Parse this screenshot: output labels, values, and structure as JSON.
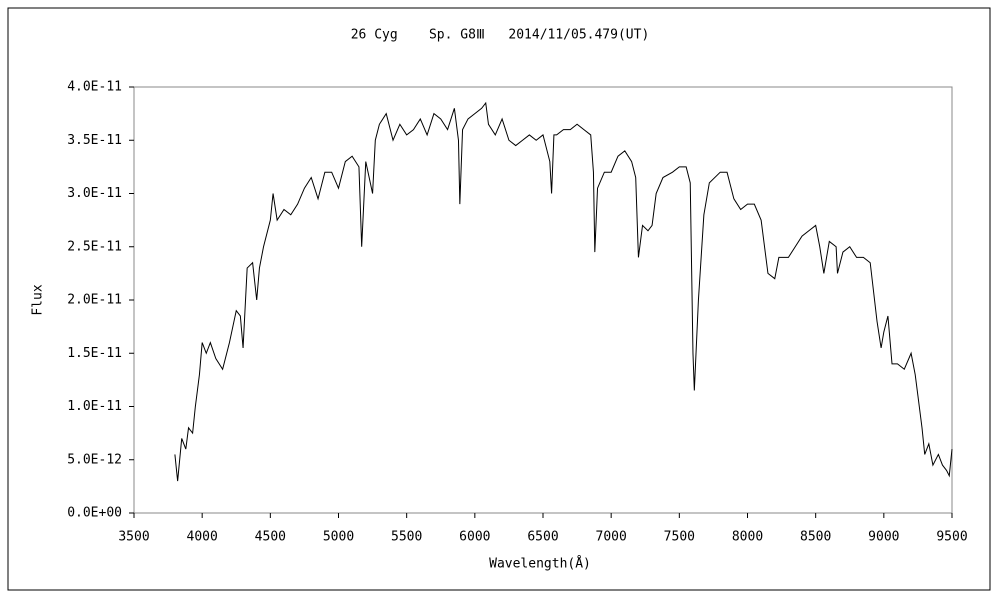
{
  "chart_data": {
    "type": "line",
    "title": "26 Cyg    Sp. G8Ⅲ   2014/11/05.479(UT)",
    "x_label": "Wavelength(Å)",
    "y_label": "Flux",
    "xlim": [
      3500,
      9500
    ],
    "xticks": [
      3500,
      4000,
      4500,
      5000,
      5500,
      6000,
      6500,
      7000,
      7500,
      8000,
      8500,
      9000,
      9500
    ],
    "ylim": [
      0,
      4e-11
    ],
    "yticks": [
      {
        "value": 0,
        "label": "0.0E+00"
      },
      {
        "value": 5e-12,
        "label": "5.0E-12"
      },
      {
        "value": 1e-11,
        "label": "1.0E-11"
      },
      {
        "value": 1.5e-11,
        "label": "1.5E-11"
      },
      {
        "value": 2e-11,
        "label": "2.0E-11"
      },
      {
        "value": 2.5e-11,
        "label": "2.5E-11"
      },
      {
        "value": 3e-11,
        "label": "3.0E-11"
      },
      {
        "value": 3.5e-11,
        "label": "3.5E-11"
      },
      {
        "value": 4e-11,
        "label": "4.0E-11"
      }
    ],
    "grid": false,
    "x": [
      3800,
      3820,
      3850,
      3880,
      3900,
      3930,
      3950,
      3980,
      4000,
      4030,
      4060,
      4100,
      4150,
      4200,
      4250,
      4280,
      4300,
      4330,
      4370,
      4400,
      4420,
      4450,
      4500,
      4520,
      4550,
      4600,
      4650,
      4700,
      4750,
      4800,
      4850,
      4900,
      4950,
      5000,
      5050,
      5100,
      5150,
      5170,
      5200,
      5250,
      5270,
      5300,
      5350,
      5400,
      5450,
      5500,
      5550,
      5600,
      5650,
      5700,
      5750,
      5800,
      5850,
      5880,
      5890,
      5910,
      5950,
      6000,
      6050,
      6080,
      6100,
      6150,
      6200,
      6250,
      6300,
      6350,
      6400,
      6450,
      6500,
      6550,
      6563,
      6580,
      6600,
      6650,
      6700,
      6750,
      6800,
      6850,
      6870,
      6880,
      6900,
      6950,
      7000,
      7050,
      7100,
      7150,
      7180,
      7200,
      7230,
      7270,
      7300,
      7330,
      7380,
      7450,
      7500,
      7550,
      7580,
      7600,
      7610,
      7640,
      7680,
      7720,
      7800,
      7850,
      7900,
      7950,
      8000,
      8050,
      8100,
      8150,
      8200,
      8230,
      8300,
      8350,
      8400,
      8450,
      8500,
      8530,
      8560,
      8600,
      8650,
      8660,
      8700,
      8750,
      8800,
      8850,
      8900,
      8950,
      8980,
      9000,
      9030,
      9060,
      9100,
      9150,
      9200,
      9230,
      9250,
      9280,
      9300,
      9330,
      9360,
      9400,
      9430,
      9460,
      9480,
      9500
    ],
    "series": [
      {
        "color": "#000000",
        "values": [
          5.5e-12,
          3e-12,
          7e-12,
          6e-12,
          8e-12,
          7.5e-12,
          1e-11,
          1.3e-11,
          1.6e-11,
          1.5e-11,
          1.6e-11,
          1.45e-11,
          1.35e-11,
          1.6e-11,
          1.9e-11,
          1.85e-11,
          1.55e-11,
          2.3e-11,
          2.35e-11,
          2e-11,
          2.3e-11,
          2.5e-11,
          2.75e-11,
          3e-11,
          2.75e-11,
          2.85e-11,
          2.8e-11,
          2.9e-11,
          3.05e-11,
          3.15e-11,
          2.95e-11,
          3.2e-11,
          3.2e-11,
          3.05e-11,
          3.3e-11,
          3.35e-11,
          3.25e-11,
          2.5e-11,
          3.3e-11,
          3e-11,
          3.5e-11,
          3.65e-11,
          3.75e-11,
          3.5e-11,
          3.65e-11,
          3.55e-11,
          3.6e-11,
          3.7e-11,
          3.55e-11,
          3.75e-11,
          3.7e-11,
          3.6e-11,
          3.8e-11,
          3.5e-11,
          2.9e-11,
          3.6e-11,
          3.7e-11,
          3.75e-11,
          3.8e-11,
          3.85e-11,
          3.65e-11,
          3.55e-11,
          3.7e-11,
          3.5e-11,
          3.45e-11,
          3.5e-11,
          3.55e-11,
          3.5e-11,
          3.55e-11,
          3.3e-11,
          3e-11,
          3.55e-11,
          3.55e-11,
          3.6e-11,
          3.6e-11,
          3.65e-11,
          3.6e-11,
          3.55e-11,
          3.2e-11,
          2.45e-11,
          3.05e-11,
          3.2e-11,
          3.2e-11,
          3.35e-11,
          3.4e-11,
          3.3e-11,
          3.15e-11,
          2.4e-11,
          2.7e-11,
          2.65e-11,
          2.7e-11,
          3e-11,
          3.15e-11,
          3.2e-11,
          3.25e-11,
          3.25e-11,
          3.1e-11,
          1.5e-11,
          1.15e-11,
          2e-11,
          2.8e-11,
          3.1e-11,
          3.2e-11,
          3.2e-11,
          2.95e-11,
          2.85e-11,
          2.9e-11,
          2.9e-11,
          2.75e-11,
          2.25e-11,
          2.2e-11,
          2.4e-11,
          2.4e-11,
          2.5e-11,
          2.6e-11,
          2.65e-11,
          2.7e-11,
          2.5e-11,
          2.25e-11,
          2.55e-11,
          2.5e-11,
          2.25e-11,
          2.45e-11,
          2.5e-11,
          2.4e-11,
          2.4e-11,
          2.35e-11,
          1.8e-11,
          1.55e-11,
          1.7e-11,
          1.85e-11,
          1.4e-11,
          1.4e-11,
          1.35e-11,
          1.5e-11,
          1.3e-11,
          1.1e-11,
          8e-12,
          5.5e-12,
          6.5e-12,
          4.5e-12,
          5.5e-12,
          4.5e-12,
          4e-12,
          3.5e-12,
          6e-12
        ]
      }
    ]
  }
}
